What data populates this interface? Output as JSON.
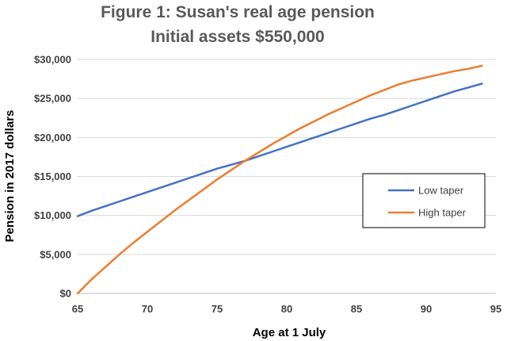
{
  "chart_data": {
    "type": "line",
    "title": "Figure 1: Susan's real age pension",
    "subtitle": "Initial assets $550,000",
    "xlabel": "Age at 1 July",
    "ylabel": "Pension in 2017 dollars",
    "xlim": [
      65,
      95
    ],
    "ylim": [
      0,
      30000
    ],
    "x_ticks": [
      65,
      70,
      75,
      80,
      85,
      90,
      95
    ],
    "y_ticks": [
      0,
      5000,
      10000,
      15000,
      20000,
      25000,
      30000
    ],
    "x_tick_labels": [
      "65",
      "70",
      "75",
      "80",
      "85",
      "90",
      "95"
    ],
    "y_tick_labels": [
      "$0",
      "$5,000",
      "$10,000",
      "$15,000",
      "$20,000",
      "$25,000",
      "$30,000"
    ],
    "grid": "horizontal",
    "legend_position": "right",
    "x": [
      65,
      66,
      67,
      68,
      69,
      70,
      71,
      72,
      73,
      74,
      75,
      76,
      77,
      78,
      79,
      80,
      81,
      82,
      83,
      84,
      85,
      86,
      87,
      88,
      89,
      90,
      91,
      92,
      93,
      94
    ],
    "series": [
      {
        "name": "Low taper",
        "color": "#4472c4",
        "values": [
          9900,
          10600,
          11200,
          11800,
          12400,
          13000,
          13600,
          14200,
          14800,
          15400,
          16000,
          16500,
          17000,
          17600,
          18200,
          18800,
          19400,
          20000,
          20600,
          21200,
          21800,
          22400,
          22900,
          23500,
          24100,
          24700,
          25300,
          25900,
          26400,
          26900
        ]
      },
      {
        "name": "High taper",
        "color": "#ed7d31",
        "values": [
          0,
          1800,
          3400,
          5000,
          6500,
          7900,
          9300,
          10700,
          12000,
          13300,
          14600,
          15800,
          17000,
          18100,
          19200,
          20200,
          21200,
          22100,
          23000,
          23800,
          24600,
          25400,
          26100,
          26800,
          27300,
          27700,
          28100,
          28500,
          28800,
          29200
        ]
      }
    ]
  }
}
